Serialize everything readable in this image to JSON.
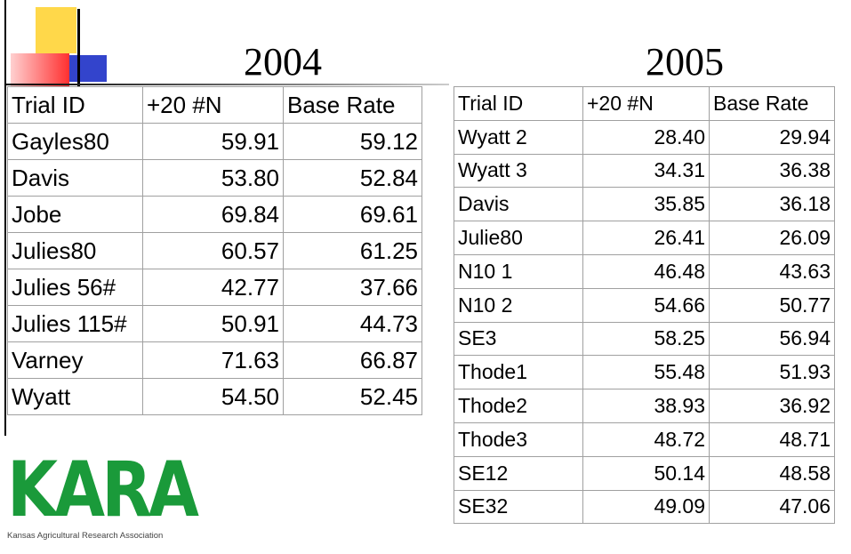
{
  "tables": [
    {
      "title": "2004",
      "header": [
        "Trial ID",
        "+20 #N",
        "Base Rate"
      ],
      "rows": [
        [
          "Gayles80",
          "59.91",
          "59.12"
        ],
        [
          "Davis",
          "53.80",
          "52.84"
        ],
        [
          "Jobe",
          "69.84",
          "69.61"
        ],
        [
          "Julies80",
          "60.57",
          "61.25"
        ],
        [
          "Julies 56#",
          "42.77",
          "37.66"
        ],
        [
          "Julies 115#",
          "50.91",
          "44.73"
        ],
        [
          "Varney",
          "71.63",
          "66.87"
        ],
        [
          "Wyatt",
          "54.50",
          "52.45"
        ]
      ]
    },
    {
      "title": "2005",
      "header": [
        "Trial ID",
        "+20 #N",
        "Base Rate"
      ],
      "rows": [
        [
          "Wyatt 2",
          "28.40",
          "29.94"
        ],
        [
          "Wyatt 3",
          "34.31",
          "36.38"
        ],
        [
          "Davis",
          "35.85",
          "36.18"
        ],
        [
          "Julie80",
          "26.41",
          "26.09"
        ],
        [
          "N10 1",
          "46.48",
          "43.63"
        ],
        [
          "N10 2",
          "54.66",
          "50.77"
        ],
        [
          "SE3",
          "58.25",
          "56.94"
        ],
        [
          "Thode1",
          "55.48",
          "51.93"
        ],
        [
          "Thode2",
          "38.93",
          "36.92"
        ],
        [
          "Thode3",
          "48.72",
          "48.71"
        ],
        [
          "SE12",
          "50.14",
          "48.58"
        ],
        [
          "SE32",
          "49.09",
          "47.06"
        ]
      ]
    }
  ],
  "logo": {
    "text": "KARA",
    "caption": "Kansas Agricultural Research Association"
  }
}
